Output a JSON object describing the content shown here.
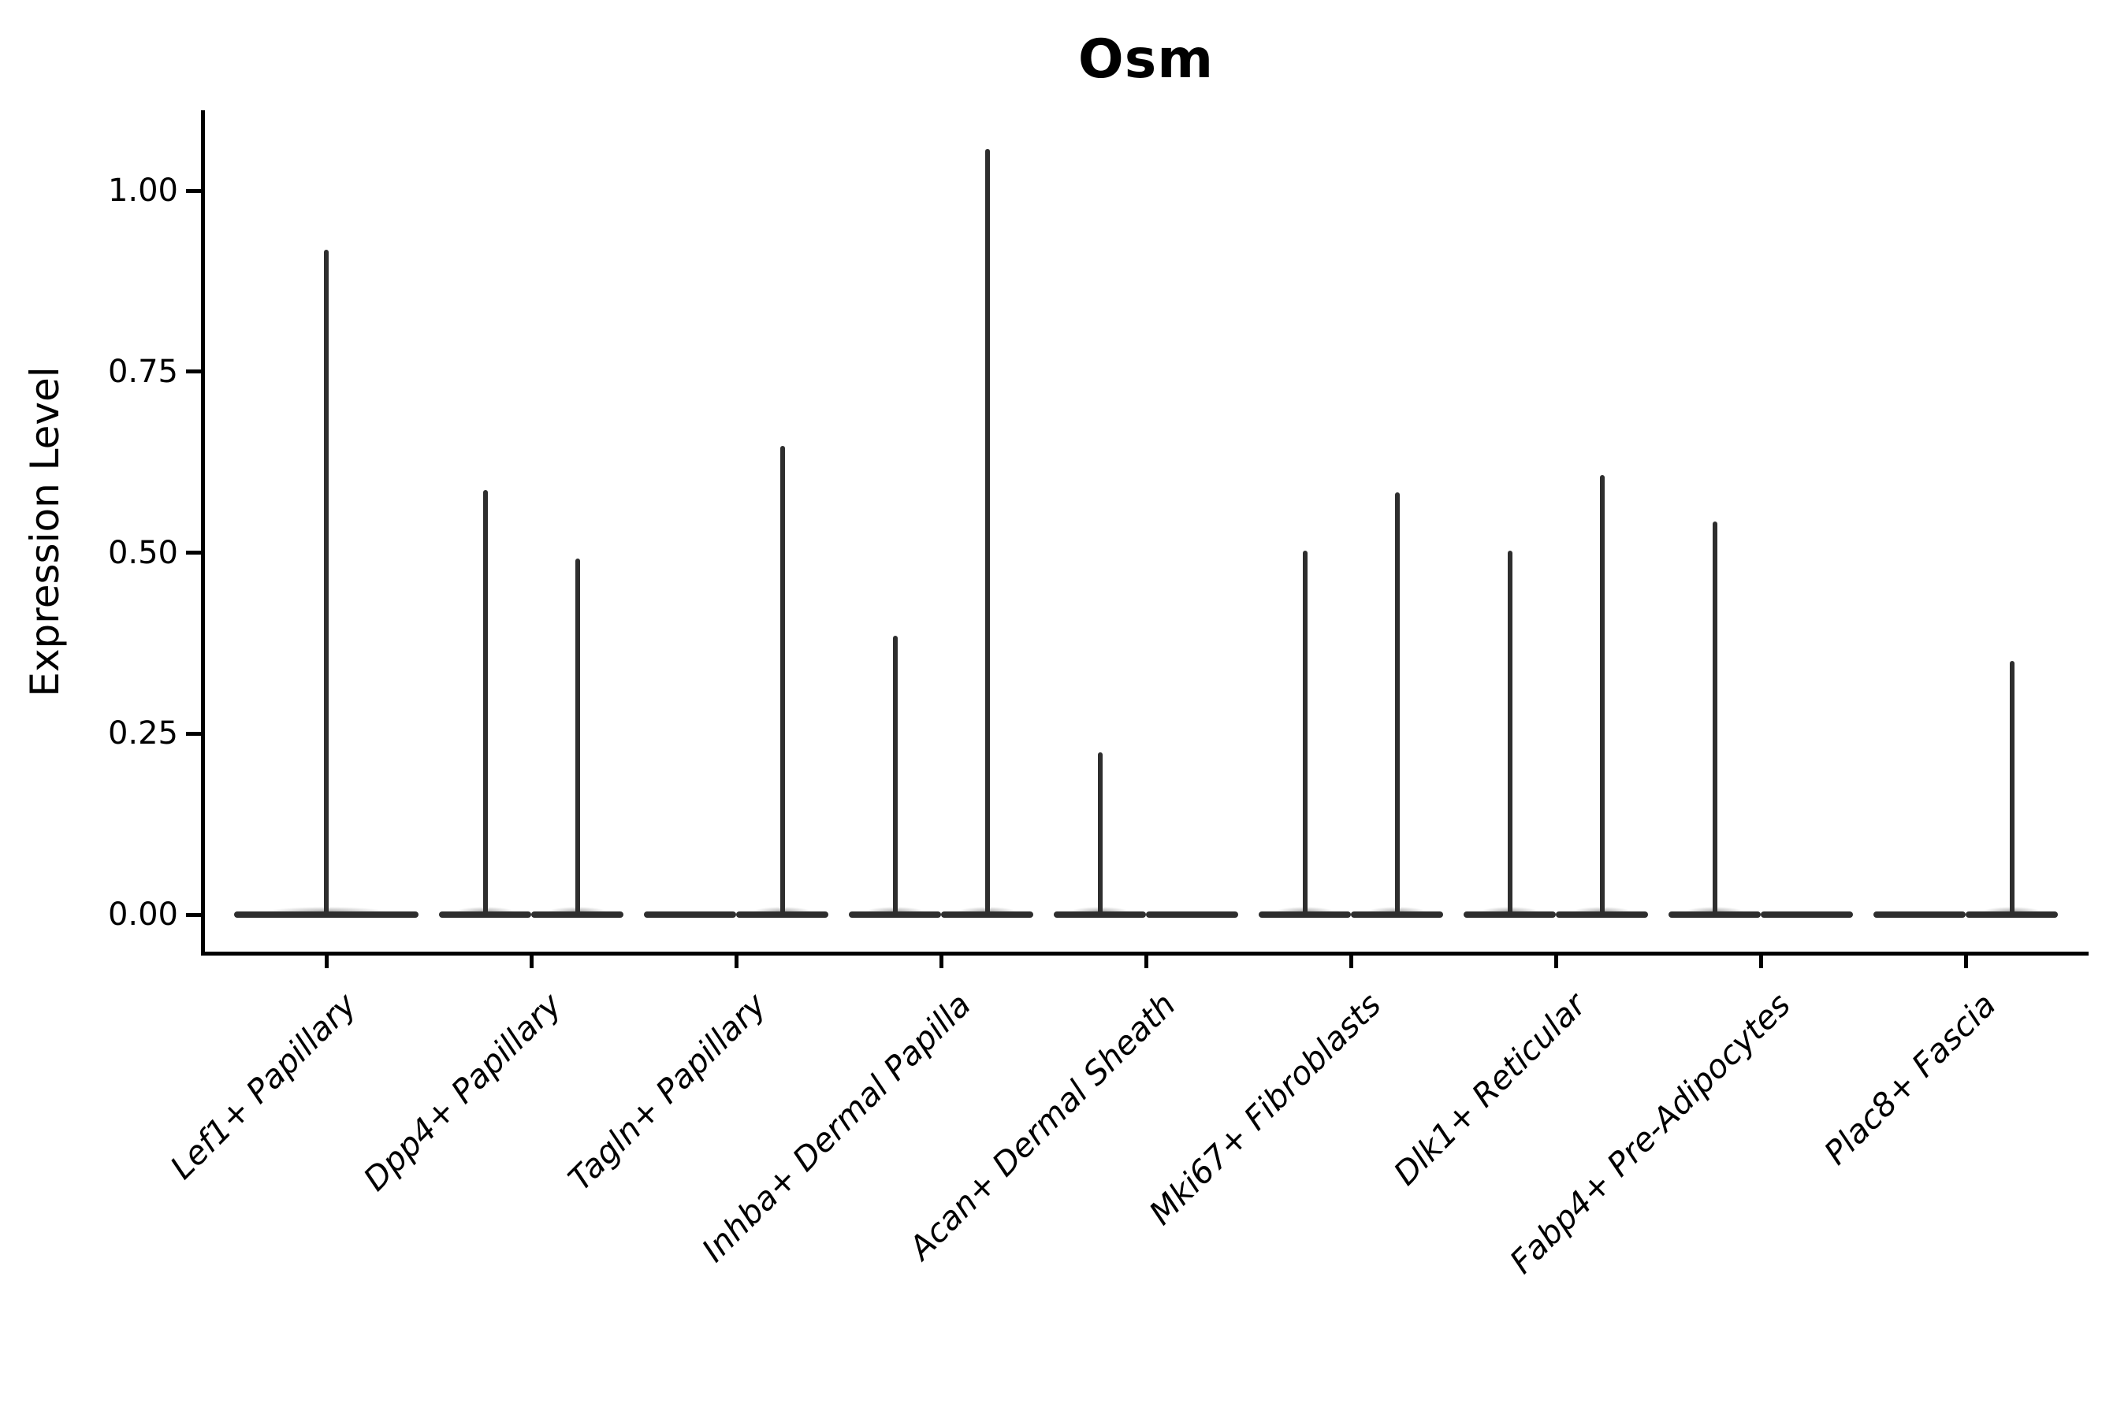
{
  "figure": {
    "title": "Osm",
    "ylabel": "Expression Level"
  },
  "chart_data": {
    "type": "violin",
    "title": "Osm",
    "xlabel": "",
    "ylabel": "Expression Level",
    "ylim": [
      -0.05,
      1.12
    ],
    "grid": false,
    "legend": "none",
    "violin_color": "#2e2e2e",
    "axis_color": "#000000",
    "yticks": [
      0,
      0.25,
      0.5,
      0.75,
      1.0
    ],
    "ytick_labels": [
      "0.00",
      "0.25",
      "0.50",
      "0.75",
      "1.00"
    ],
    "categories": [
      "Lef1+ Papillary",
      "Dpp4+ Papillary",
      "Tagln+ Papillary",
      "Inhba+ Dermal Papilla",
      "Acan+ Dermal Sheath",
      "Mki67+ Fibroblasts",
      "Dlk1+ Reticular",
      "Fabp4+ Pre-Adipocytes",
      "Plac8+ Fascia"
    ],
    "description": "Violin plot of Osm expression; every violin is flat at expression level 0 with a thin vertical spike reaching the maximum expression value. Categories with two groups show two half-width violins side by side.",
    "violins": [
      {
        "category": "Lef1+ Papillary",
        "group_layout": "single",
        "groups": [
          {
            "position": "center",
            "max_expression": 0.918
          }
        ]
      },
      {
        "category": "Dpp4+ Papillary",
        "group_layout": "split",
        "groups": [
          {
            "position": "left",
            "max_expression": 0.587
          },
          {
            "position": "right",
            "max_expression": 0.492
          }
        ]
      },
      {
        "category": "Tagln+ Papillary",
        "group_layout": "split",
        "groups": [
          {
            "position": "left",
            "max_expression": 0
          },
          {
            "position": "right",
            "max_expression": 0.647
          }
        ]
      },
      {
        "category": "Inhba+ Dermal Papilla",
        "group_layout": "split",
        "groups": [
          {
            "position": "left",
            "max_expression": 0.385
          },
          {
            "position": "right",
            "max_expression": 1.058
          }
        ]
      },
      {
        "category": "Acan+ Dermal Sheath",
        "group_layout": "split",
        "groups": [
          {
            "position": "left",
            "max_expression": 0.224
          },
          {
            "position": "right",
            "max_expression": 0
          }
        ]
      },
      {
        "category": "Mki67+ Fibroblasts",
        "group_layout": "split",
        "groups": [
          {
            "position": "left",
            "max_expression": 0.503
          },
          {
            "position": "right",
            "max_expression": 0.583
          }
        ]
      },
      {
        "category": "Dlk1+ Reticular",
        "group_layout": "split",
        "groups": [
          {
            "position": "left",
            "max_expression": 0.503
          },
          {
            "position": "right",
            "max_expression": 0.607
          }
        ]
      },
      {
        "category": "Fabp4+ Pre-Adipocytes",
        "group_layout": "split",
        "groups": [
          {
            "position": "left",
            "max_expression": 0.543
          },
          {
            "position": "right",
            "max_expression": 0
          }
        ]
      },
      {
        "category": "Plac8+ Fascia",
        "group_layout": "split",
        "groups": [
          {
            "position": "left",
            "max_expression": 0
          },
          {
            "position": "right",
            "max_expression": 0.35
          }
        ]
      }
    ]
  }
}
